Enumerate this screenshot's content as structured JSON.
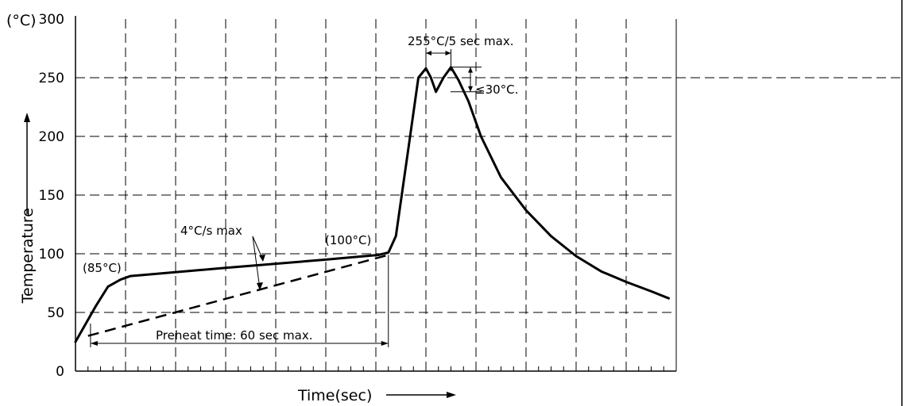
{
  "chart_data": {
    "type": "line",
    "title": "",
    "xlabel": "Time(sec)",
    "ylabel": "Temperature",
    "y_unit_label": "(°C)",
    "ylim": [
      0,
      300
    ],
    "xlim": [
      0,
      24
    ],
    "y_ticks": [
      0,
      50,
      100,
      150,
      200,
      250,
      300
    ],
    "grid": true,
    "series": [
      {
        "style": "solid",
        "x": [
          0,
          0.8,
          1.3,
          1.8,
          2.2,
          6,
          10,
          12.1,
          12.5,
          12.8,
          13.3,
          13.7,
          14.0,
          14.2,
          14.4,
          14.7,
          15.0,
          15.3,
          15.7,
          16.2,
          17.0,
          18.0,
          19.0,
          20.0,
          21.0,
          22.0,
          23.0,
          23.7
        ],
        "y": [
          25,
          55,
          72,
          78,
          81,
          88,
          95,
          99,
          101,
          115,
          190,
          250,
          258,
          250,
          238,
          250,
          259,
          248,
          230,
          200,
          165,
          137,
          115,
          98,
          85,
          76,
          68,
          62
        ]
      },
      {
        "style": "dashed",
        "x": [
          0.5,
          12.5
        ],
        "y": [
          30,
          99
        ]
      }
    ],
    "annotations": {
      "peak_label": "255°C/5 sec max.",
      "delta_label": "≤30°C.",
      "soak_start_label": "(85°C)",
      "soak_end_label": "(100°C)",
      "ramp_label": "4°C/s max",
      "preheat_label": "Preheat time: 60 sec max.",
      "ref_temperature": 250,
      "preheat_start_x": 0.6,
      "preheat_end_x": 12.5,
      "peak_x": [
        14.0,
        15.0
      ],
      "delta_band": [
        238,
        259
      ]
    }
  }
}
